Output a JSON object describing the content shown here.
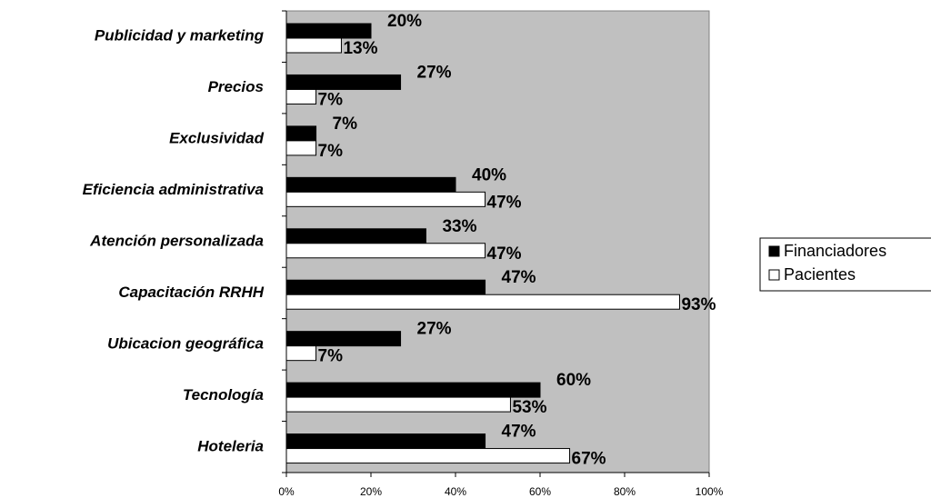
{
  "chart_data": {
    "type": "hbar",
    "categories": [
      "Publicidad y marketing",
      "Precios",
      "Exclusividad",
      "Eficiencia administrativa",
      "Atención personalizada",
      "Capacitación RRHH",
      "Ubicacion geográfica",
      "Tecnología",
      "Hoteleria"
    ],
    "series": [
      {
        "name": "Financiadores",
        "color": "#000000",
        "values": [
          20,
          27,
          7,
          40,
          33,
          47,
          27,
          60,
          47
        ],
        "value_labels": [
          "20%",
          "27%",
          "7%",
          "40%",
          "33%",
          "47%",
          "27%",
          "60%",
          "47%"
        ]
      },
      {
        "name": "Pacientes",
        "color": "#ffffff",
        "values": [
          13,
          7,
          7,
          47,
          47,
          93,
          7,
          53,
          67
        ],
        "value_labels": [
          "13%",
          "7%",
          "7%",
          "47%",
          "47%",
          "93%",
          "7%",
          "53%",
          "67%"
        ]
      }
    ],
    "xlim": [
      0,
      100
    ],
    "xticks": [
      {
        "value": 0,
        "label": "0%"
      },
      {
        "value": 20,
        "label": "20%"
      },
      {
        "value": 40,
        "label": "40%"
      },
      {
        "value": 60,
        "label": "60%"
      },
      {
        "value": 80,
        "label": "80%"
      },
      {
        "value": 100,
        "label": "100%"
      }
    ],
    "plot_background": "#c0c0c0"
  }
}
